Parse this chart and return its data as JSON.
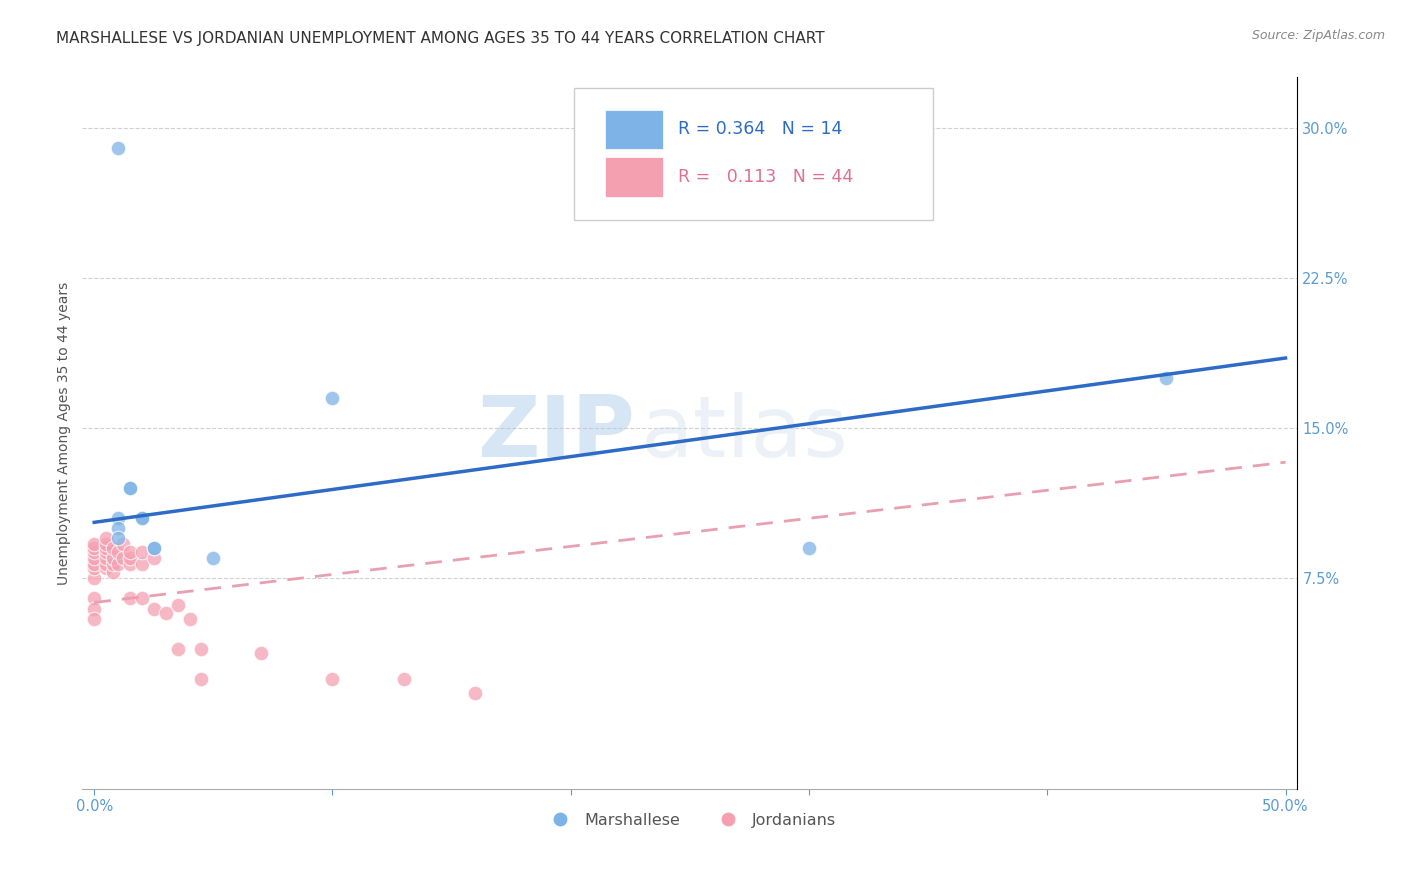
{
  "title": "MARSHALLESE VS JORDANIAN UNEMPLOYMENT AMONG AGES 35 TO 44 YEARS CORRELATION CHART",
  "source": "Source: ZipAtlas.com",
  "ylabel": "Unemployment Among Ages 35 to 44 years",
  "xlabel_ticks": [
    "0.0%",
    "",
    "",
    "",
    "",
    "50.0%"
  ],
  "xlabel_vals": [
    0.0,
    0.1,
    0.2,
    0.3,
    0.4,
    0.5
  ],
  "ylabel_ticks": [
    "7.5%",
    "15.0%",
    "22.5%",
    "30.0%"
  ],
  "ylabel_vals": [
    0.075,
    0.15,
    0.225,
    0.3
  ],
  "xlim": [
    -0.005,
    0.505
  ],
  "ylim": [
    -0.03,
    0.325
  ],
  "marshallese_R": 0.364,
  "marshallese_N": 14,
  "jordanian_R": 0.113,
  "jordanian_N": 44,
  "marshallese_color": "#7EB3E8",
  "jordanian_color": "#F4A0B0",
  "trendline_marshallese_color": "#2E6BC6",
  "trendline_jordanian_color": "#E8A0B0",
  "watermark_zip": "ZIP",
  "watermark_atlas": "atlas",
  "marshallese_x": [
    0.01,
    0.015,
    0.01,
    0.015,
    0.01,
    0.02,
    0.025,
    0.025,
    0.02,
    0.05,
    0.3,
    0.45,
    0.01,
    0.1
  ],
  "marshallese_y": [
    0.105,
    0.12,
    0.1,
    0.12,
    0.095,
    0.105,
    0.09,
    0.09,
    0.105,
    0.085,
    0.09,
    0.175,
    0.29,
    0.165
  ],
  "jordanian_x": [
    0.0,
    0.0,
    0.0,
    0.0,
    0.0,
    0.0,
    0.0,
    0.0,
    0.0,
    0.0,
    0.005,
    0.005,
    0.005,
    0.005,
    0.005,
    0.005,
    0.005,
    0.008,
    0.008,
    0.008,
    0.008,
    0.01,
    0.01,
    0.012,
    0.012,
    0.015,
    0.015,
    0.015,
    0.015,
    0.02,
    0.02,
    0.02,
    0.025,
    0.025,
    0.03,
    0.035,
    0.035,
    0.04,
    0.045,
    0.045,
    0.07,
    0.1,
    0.13,
    0.16
  ],
  "jordanian_y": [
    0.075,
    0.08,
    0.082,
    0.085,
    0.088,
    0.09,
    0.092,
    0.065,
    0.06,
    0.055,
    0.08,
    0.082,
    0.085,
    0.088,
    0.09,
    0.092,
    0.095,
    0.078,
    0.082,
    0.085,
    0.09,
    0.082,
    0.088,
    0.085,
    0.092,
    0.082,
    0.085,
    0.088,
    0.065,
    0.082,
    0.088,
    0.065,
    0.085,
    0.06,
    0.058,
    0.062,
    0.04,
    0.055,
    0.04,
    0.025,
    0.038,
    0.025,
    0.025,
    0.018
  ],
  "trendline_m_x0": 0.0,
  "trendline_m_y0": 0.103,
  "trendline_m_x1": 0.5,
  "trendline_m_y1": 0.185,
  "trendline_j_x0": 0.0,
  "trendline_j_y0": 0.063,
  "trendline_j_x1": 0.5,
  "trendline_j_y1": 0.133,
  "background_color": "#FFFFFF",
  "grid_color": "#CCCCCC",
  "title_fontsize": 11,
  "axis_label_fontsize": 10,
  "tick_fontsize": 10.5,
  "legend_fontsize": 12
}
